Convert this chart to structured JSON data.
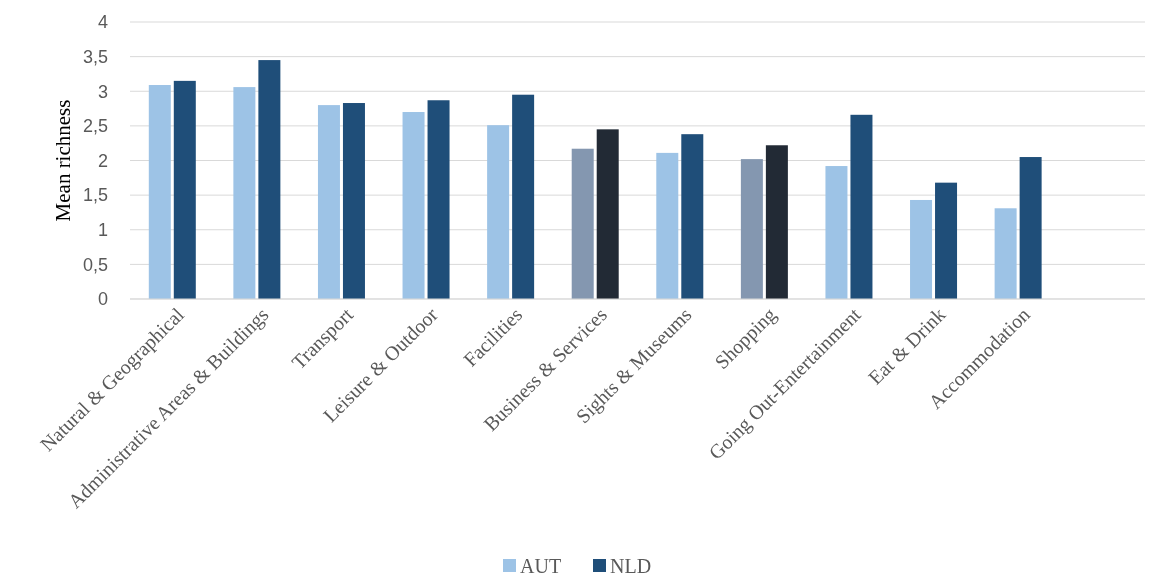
{
  "chart_data": {
    "type": "bar",
    "ylabel": "Mean richness",
    "categories": [
      "Natural & Geographical",
      "Administrative Areas & Buildings",
      "Transport",
      "Leisure & Outdoor",
      "Facilities",
      "Business & Services",
      "Sights & Museums",
      "Shopping",
      "Going Out-Entertainment",
      "Eat & Drink",
      "Accommodation"
    ],
    "series": [
      {
        "name": "AUT",
        "color": "#9dc3e6",
        "colors": [
          "#9dc3e6",
          "#9dc3e6",
          "#9dc3e6",
          "#9dc3e6",
          "#9dc3e6",
          "#8497b0",
          "#9dc3e6",
          "#8497b0",
          "#9dc3e6",
          "#9dc3e6",
          "#9dc3e6"
        ],
        "values": [
          3.09,
          3.06,
          2.8,
          2.7,
          2.51,
          2.17,
          2.11,
          2.02,
          1.92,
          1.43,
          1.31
        ]
      },
      {
        "name": "NLD",
        "color": "#1f4e79",
        "colors": [
          "#1f4e79",
          "#1f4e79",
          "#1f4e79",
          "#1f4e79",
          "#1f4e79",
          "#222a35",
          "#1f4e79",
          "#222a35",
          "#1f4e79",
          "#1f4e79",
          "#1f4e79"
        ],
        "values": [
          3.15,
          3.45,
          2.83,
          2.87,
          2.95,
          2.45,
          2.38,
          2.22,
          2.66,
          1.68,
          2.05
        ]
      }
    ],
    "ylim": [
      0,
      4
    ],
    "yticks": [
      0,
      {
        "value": 0.5,
        "label": "0,5"
      },
      1,
      {
        "value": 1.5,
        "label": "1,5"
      },
      2,
      {
        "value": 2.5,
        "label": "2,5"
      },
      3,
      {
        "value": 3.5,
        "label": "3,5"
      },
      4
    ],
    "grid": "y",
    "legend": "bottom"
  }
}
